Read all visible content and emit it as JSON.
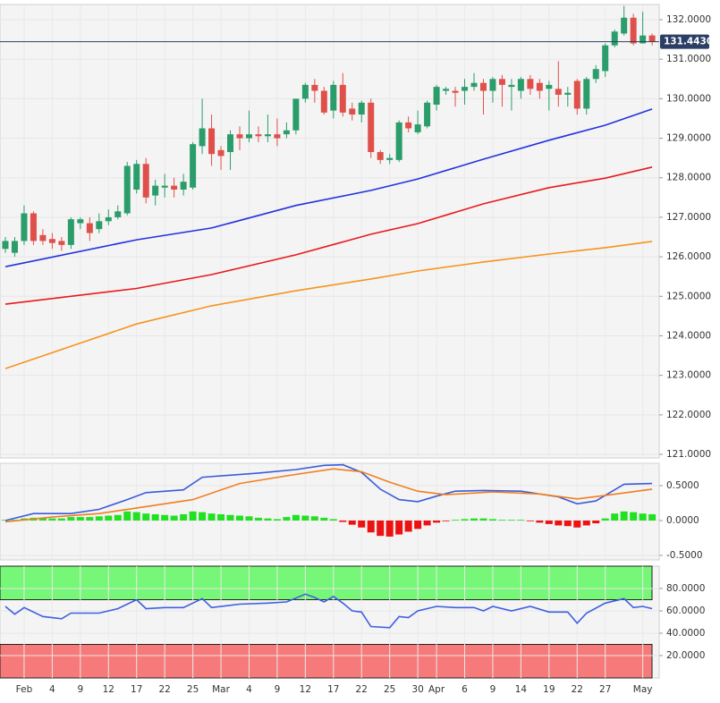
{
  "chart_data": [
    {
      "type": "candlestick",
      "up_color": "#2a9d6a",
      "down_color": "#e0504a",
      "open": [
        126.2,
        126.1,
        126.4,
        127.1,
        126.55,
        126.45,
        126.4,
        126.3,
        126.85,
        126.85,
        126.7,
        126.9,
        127.0,
        127.1,
        127.7,
        128.35,
        127.55,
        127.75,
        127.8,
        127.7,
        127.75,
        128.8,
        129.25,
        128.7,
        128.65,
        129.1,
        129.0,
        129.1,
        129.05,
        129.1,
        129.1,
        129.2,
        130.0,
        130.35,
        130.2,
        129.7,
        130.35,
        129.75,
        129.6,
        129.9,
        128.65,
        128.45,
        128.45,
        129.4,
        129.15,
        129.3,
        129.85,
        130.2,
        130.2,
        130.2,
        130.3,
        130.4,
        130.2,
        130.5,
        130.3,
        130.2,
        130.5,
        130.4,
        130.25,
        130.25,
        130.1,
        130.45,
        129.75,
        130.5,
        130.7,
        131.35,
        131.65,
        132.05,
        131.4,
        131.6
      ],
      "high": [
        126.5,
        126.5,
        127.3,
        127.15,
        126.7,
        126.6,
        126.5,
        127.0,
        127.0,
        127.0,
        127.1,
        127.2,
        127.3,
        128.4,
        128.45,
        128.5,
        127.95,
        128.1,
        128.0,
        128.1,
        128.9,
        130.0,
        129.6,
        128.8,
        129.2,
        129.3,
        129.7,
        129.3,
        129.6,
        129.5,
        129.4,
        130.0,
        130.4,
        130.5,
        130.3,
        130.45,
        130.65,
        129.9,
        129.95,
        130.0,
        128.7,
        128.6,
        129.45,
        129.55,
        129.7,
        129.95,
        130.35,
        130.3,
        130.3,
        130.5,
        130.65,
        130.5,
        130.55,
        130.6,
        130.5,
        130.55,
        130.6,
        130.5,
        130.45,
        130.95,
        130.3,
        130.5,
        130.55,
        130.85,
        131.4,
        131.75,
        132.35,
        132.15,
        132.2,
        131.65
      ],
      "low": [
        126.1,
        126.0,
        126.3,
        126.3,
        126.3,
        126.2,
        126.15,
        126.2,
        126.7,
        126.4,
        126.6,
        126.8,
        126.95,
        127.05,
        127.6,
        127.35,
        127.3,
        127.5,
        127.5,
        127.55,
        127.7,
        128.6,
        128.3,
        128.2,
        128.2,
        128.7,
        128.9,
        128.9,
        128.9,
        128.8,
        129.0,
        129.1,
        129.9,
        129.9,
        129.6,
        129.5,
        129.55,
        129.45,
        129.4,
        128.5,
        128.35,
        128.35,
        128.4,
        129.15,
        129.1,
        129.25,
        129.7,
        130.1,
        129.8,
        129.85,
        130.2,
        129.6,
        129.9,
        129.8,
        129.7,
        130.0,
        130.1,
        130.0,
        129.7,
        129.8,
        129.8,
        129.6,
        129.6,
        130.4,
        130.55,
        131.3,
        131.6,
        131.35,
        131.4,
        131.35
      ],
      "close": [
        126.4,
        126.4,
        127.1,
        126.4,
        126.4,
        126.35,
        126.3,
        126.95,
        126.95,
        126.6,
        126.9,
        127.0,
        127.15,
        128.3,
        128.35,
        127.5,
        127.8,
        127.8,
        127.7,
        127.9,
        128.85,
        129.25,
        128.6,
        128.55,
        129.1,
        129.0,
        129.1,
        129.05,
        129.1,
        129.0,
        129.2,
        130.0,
        130.35,
        130.2,
        129.65,
        130.35,
        129.65,
        129.6,
        129.9,
        128.65,
        128.45,
        128.5,
        129.4,
        129.25,
        129.35,
        129.9,
        130.3,
        130.25,
        130.15,
        130.3,
        130.4,
        130.2,
        130.5,
        130.35,
        130.35,
        130.5,
        130.25,
        130.2,
        130.35,
        130.1,
        130.15,
        129.75,
        130.5,
        130.75,
        131.35,
        131.7,
        132.05,
        131.4,
        131.6,
        131.44
      ],
      "lines": [
        {
          "color": "#2233dd",
          "x": [
            0,
            14,
            22,
            31,
            39,
            44,
            51,
            58,
            64,
            69
          ],
          "values": [
            125.75,
            126.43,
            126.73,
            127.3,
            127.68,
            127.97,
            128.47,
            128.95,
            129.33,
            129.74
          ]
        },
        {
          "color": "#e8191c",
          "x": [
            0,
            14,
            22,
            31,
            39,
            44,
            51,
            58,
            64,
            69
          ],
          "values": [
            124.8,
            125.2,
            125.55,
            126.05,
            126.57,
            126.84,
            127.34,
            127.75,
            127.99,
            128.27
          ]
        },
        {
          "color": "#f7931e",
          "x": [
            0,
            14,
            22,
            31,
            39,
            44,
            51,
            58,
            64,
            69
          ],
          "values": [
            123.17,
            124.3,
            124.76,
            125.14,
            125.44,
            125.64,
            125.87,
            126.07,
            126.23,
            126.39
          ]
        }
      ],
      "price_line": {
        "value": 131.443,
        "label": "131.4430",
        "color": "#2b3f66"
      },
      "ylim": [
        120.91,
        132.385
      ],
      "yticks": [
        {
          "value": 121,
          "label": "121.0000"
        },
        {
          "value": 122,
          "label": "122.0000"
        },
        {
          "value": 123,
          "label": "123.0000"
        },
        {
          "value": 124,
          "label": "124.0000"
        },
        {
          "value": 125,
          "label": "125.0000"
        },
        {
          "value": 126,
          "label": "126.0000"
        },
        {
          "value": 127,
          "label": "127.0000"
        },
        {
          "value": 128,
          "label": "128.0000"
        },
        {
          "value": 129,
          "label": "129.0000"
        },
        {
          "value": 130,
          "label": "130.0000"
        },
        {
          "value": 131,
          "label": "131.0000"
        },
        {
          "value": 132,
          "label": "132.0000"
        }
      ],
      "grid": true
    },
    {
      "type": "histogram",
      "up_color": "#22e022",
      "down_color": "#ee1111",
      "values": [
        0.01,
        0.01,
        0.03,
        0.04,
        0.04,
        0.03,
        0.03,
        0.05,
        0.05,
        0.05,
        0.06,
        0.07,
        0.08,
        0.13,
        0.12,
        0.1,
        0.09,
        0.08,
        0.07,
        0.09,
        0.13,
        0.12,
        0.1,
        0.09,
        0.08,
        0.07,
        0.06,
        0.04,
        0.03,
        0.02,
        0.05,
        0.08,
        0.07,
        0.06,
        0.04,
        0.02,
        -0.02,
        -0.06,
        -0.1,
        -0.17,
        -0.22,
        -0.23,
        -0.2,
        -0.16,
        -0.12,
        -0.07,
        -0.03,
        -0.01,
        0.01,
        0.02,
        0.03,
        0.03,
        0.02,
        0.01,
        0.01,
        0.01,
        -0.01,
        -0.03,
        -0.05,
        -0.07,
        -0.08,
        -0.1,
        -0.07,
        -0.04,
        0.03,
        0.1,
        0.13,
        0.12,
        0.1,
        0.09
      ],
      "lines": [
        {
          "color": "#3b5bdb",
          "x": [
            0,
            3,
            7,
            10,
            13,
            15,
            19,
            21,
            27,
            31,
            34,
            36,
            38,
            40,
            42,
            44,
            46,
            48,
            51,
            55,
            59,
            61,
            63,
            66,
            69
          ],
          "values": [
            0.0,
            0.1,
            0.1,
            0.16,
            0.3,
            0.4,
            0.44,
            0.62,
            0.68,
            0.73,
            0.79,
            0.8,
            0.69,
            0.45,
            0.3,
            0.27,
            0.35,
            0.42,
            0.43,
            0.42,
            0.34,
            0.24,
            0.28,
            0.52,
            0.53
          ]
        },
        {
          "color": "#f07f1e",
          "x": [
            0,
            5,
            10,
            15,
            20,
            25,
            30,
            35,
            38,
            41,
            44,
            47,
            52,
            57,
            61,
            64,
            69
          ],
          "values": [
            -0.02,
            0.05,
            0.1,
            0.2,
            0.3,
            0.53,
            0.64,
            0.74,
            0.7,
            0.55,
            0.42,
            0.37,
            0.41,
            0.38,
            0.31,
            0.36,
            0.45
          ]
        }
      ],
      "ylim": [
        -0.564,
        0.82
      ],
      "yticks": [
        {
          "value": -0.5,
          "label": "-0.5000"
        },
        {
          "value": 0,
          "label": "0.0000"
        },
        {
          "value": 0.5,
          "label": "0.5000"
        }
      ],
      "grid": true
    },
    {
      "type": "line",
      "bands": [
        {
          "range": [
            70,
            100
          ],
          "color": "#77f777"
        },
        {
          "range": [
            0,
            30
          ],
          "color": "#f77a7a"
        }
      ],
      "lines": [
        {
          "color": "#3f5fe0",
          "x": [
            0,
            1,
            2,
            4,
            6,
            7,
            10,
            12,
            14,
            15,
            17,
            19,
            21,
            22,
            25,
            28,
            30,
            32,
            33,
            34,
            35,
            36,
            37,
            38,
            39,
            41,
            42,
            43,
            44,
            46,
            48,
            50,
            51,
            52,
            54,
            56,
            58,
            60,
            61,
            62,
            64,
            66,
            67,
            68,
            69
          ],
          "values": [
            64,
            57,
            63,
            55,
            53,
            58,
            58,
            62,
            70,
            62,
            63,
            63,
            71,
            63,
            66,
            67,
            68,
            75,
            72,
            68,
            73,
            67,
            60,
            59,
            46,
            45,
            55,
            54,
            60,
            64,
            63,
            63,
            60,
            64,
            60,
            64,
            59,
            59,
            49,
            58,
            67,
            71,
            63,
            64,
            62
          ]
        }
      ],
      "ylim": [
        0,
        100
      ],
      "yticks": [
        {
          "value": 20,
          "label": "20.0000"
        },
        {
          "value": 40,
          "label": "40.0000"
        },
        {
          "value": 60,
          "label": "60.0000"
        },
        {
          "value": 80,
          "label": "80.0000"
        }
      ],
      "xticks": [
        {
          "value": 2,
          "label": "Feb"
        },
        {
          "value": 5,
          "label": "4"
        },
        {
          "value": 8,
          "label": "9"
        },
        {
          "value": 11,
          "label": "12"
        },
        {
          "value": 14,
          "label": "17"
        },
        {
          "value": 17,
          "label": "22"
        },
        {
          "value": 20,
          "label": "25"
        },
        {
          "value": 23,
          "label": "Mar"
        },
        {
          "value": 26,
          "label": "4"
        },
        {
          "value": 29,
          "label": "9"
        },
        {
          "value": 32,
          "label": "12"
        },
        {
          "value": 35,
          "label": "17"
        },
        {
          "value": 38,
          "label": "22"
        },
        {
          "value": 41,
          "label": "25"
        },
        {
          "value": 44,
          "label": "30"
        },
        {
          "value": 46,
          "label": "Apr"
        },
        {
          "value": 49,
          "label": "6"
        },
        {
          "value": 52,
          "label": "9"
        },
        {
          "value": 55,
          "label": "14"
        },
        {
          "value": 58,
          "label": "19"
        },
        {
          "value": 61,
          "label": "22"
        },
        {
          "value": 64,
          "label": "27"
        },
        {
          "value": 68,
          "label": "May"
        }
      ],
      "grid": true
    }
  ]
}
